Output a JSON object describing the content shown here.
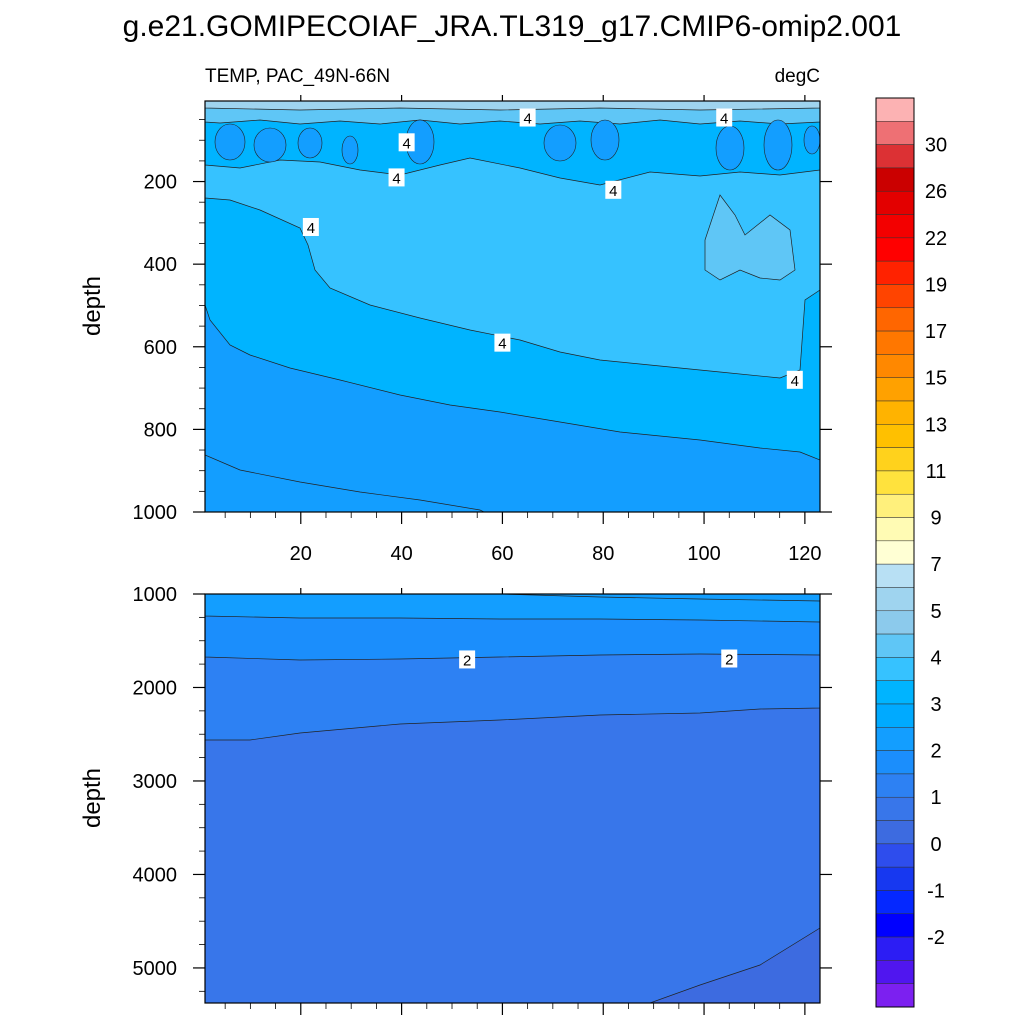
{
  "title": "g.e21.GOMIPECOIAF_JRA.TL319_g17.CMIP6-omip2.001",
  "subtitle_left": "TEMP, PAC_49N-66N",
  "subtitle_right": "degC",
  "chart_data": [
    {
      "type": "contour",
      "panel": "upper",
      "variable": "TEMP",
      "region": "PAC_49N-66N",
      "units": "degC",
      "xlabel": "",
      "ylabel": "depth",
      "xlim": [
        1,
        123
      ],
      "ylim": [
        1000,
        5
      ],
      "y_inverted": true,
      "x_ticks": [
        20,
        40,
        60,
        80,
        100,
        120
      ],
      "y_ticks": [
        200,
        400,
        600,
        800,
        1000
      ],
      "contour_labels": [
        {
          "x": 41,
          "y": 105,
          "text": "4"
        },
        {
          "x": 65,
          "y": 45,
          "text": "4"
        },
        {
          "x": 104,
          "y": 45,
          "text": "4"
        },
        {
          "x": 39,
          "y": 190,
          "text": "4"
        },
        {
          "x": 82,
          "y": 220,
          "text": "4"
        },
        {
          "x": 22,
          "y": 310,
          "text": "4"
        },
        {
          "x": 60,
          "y": 590,
          "text": "4"
        },
        {
          "x": 118,
          "y": 680,
          "text": "4"
        }
      ],
      "regions": [
        {
          "range": [
            2.5,
            3.0
          ],
          "color": "#139eff"
        },
        {
          "range": [
            3.0,
            3.5
          ],
          "color": "#00b4ff"
        },
        {
          "range": [
            3.5,
            4.0
          ],
          "color": "#36c2ff"
        },
        {
          "range": [
            4.0,
            4.5
          ],
          "color": "#5fc6f6"
        },
        {
          "range": [
            5.0,
            6.0
          ],
          "color": "#9fd4ef"
        }
      ]
    },
    {
      "type": "contour",
      "panel": "lower",
      "variable": "TEMP",
      "units": "degC",
      "xlabel": "",
      "ylabel": "depth",
      "xlim": [
        1,
        123
      ],
      "ylim": [
        5375,
        1000
      ],
      "y_inverted": true,
      "y_ticks": [
        1000,
        2000,
        3000,
        4000,
        5000
      ],
      "contour_labels": [
        {
          "x": 53,
          "y": 1700,
          "text": "2"
        },
        {
          "x": 105,
          "y": 1690,
          "text": "2"
        }
      ],
      "regions": [
        {
          "range": [
            2.0,
            2.5
          ],
          "color": "#1b8efc"
        },
        {
          "range": [
            1.5,
            2.0
          ],
          "color": "#2d81f3"
        },
        {
          "range": [
            1.0,
            1.5
          ],
          "color": "#3876ea"
        },
        {
          "range": [
            0.5,
            1.0
          ],
          "color": "#3d6be0"
        }
      ]
    }
  ],
  "colorbar": {
    "labels": [
      "30",
      "26",
      "22",
      "19",
      "17",
      "15",
      "13",
      "11",
      "9",
      "7",
      "5",
      "4",
      "3",
      "2",
      "1",
      "0",
      "-1",
      "-2"
    ],
    "colors": [
      "#fcb2b3",
      "#ee7074",
      "#dc3134",
      "#cb0000",
      "#e30000",
      "#f30000",
      "#ff0000",
      "#ff2200",
      "#ff4400",
      "#ff6600",
      "#ff7700",
      "#ff8800",
      "#ffa100",
      "#ffb300",
      "#ffc000",
      "#ffd21c",
      "#ffe23d",
      "#fff07c",
      "#fffbb4",
      "#ffffd4",
      "#b8e0f4",
      "#9fd4ef",
      "#8ccaec",
      "#5fc6f6",
      "#36c2ff",
      "#00b4ff",
      "#00aaff",
      "#139eff",
      "#1b8efc",
      "#2d81f3",
      "#3876ea",
      "#3d6be0",
      "#2e4ded",
      "#1738f0",
      "#0528ff",
      "#0000ff",
      "#2c1df4",
      "#5016ef",
      "#7c20f0"
    ]
  }
}
